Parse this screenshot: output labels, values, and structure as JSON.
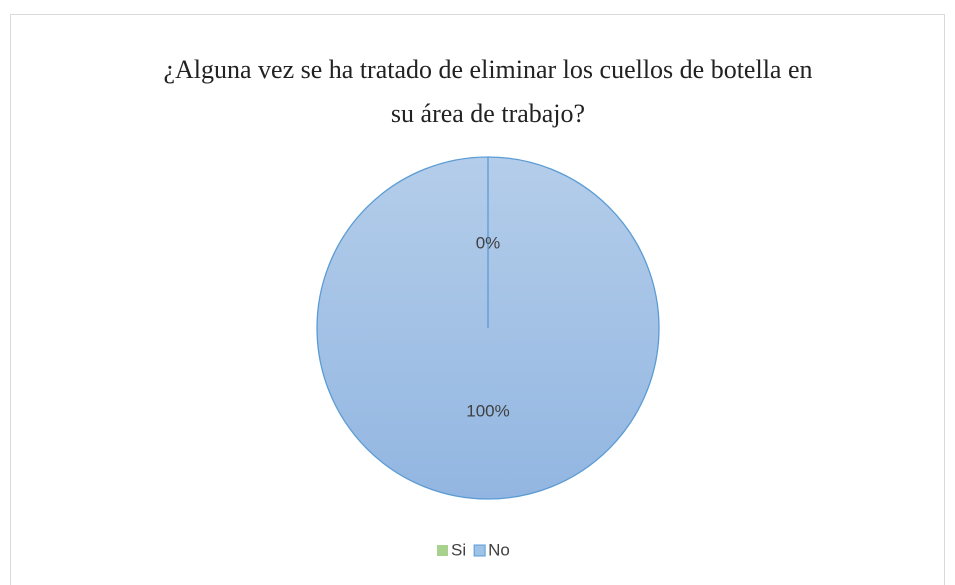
{
  "chart_data": {
    "type": "pie",
    "title": "¿Alguna vez se ha tratado de eliminar los cuellos de botella en su área de trabajo?",
    "categories": [
      "Si",
      "No"
    ],
    "values": [
      0,
      100
    ],
    "value_labels": [
      "0%",
      "100%"
    ],
    "colors": [
      "#a9d18e",
      "#9dc3e6"
    ],
    "legend": "bottom"
  }
}
